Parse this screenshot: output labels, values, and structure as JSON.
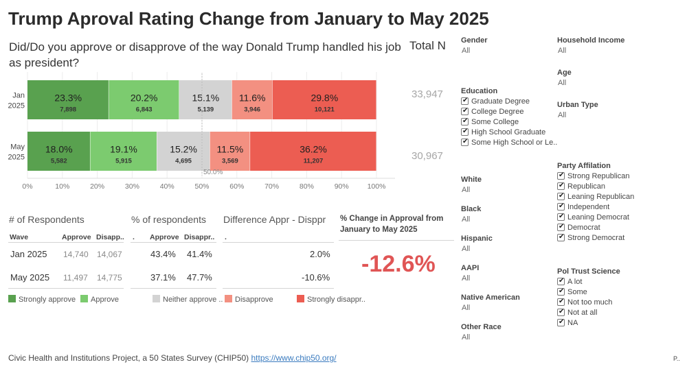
{
  "title": "Trump Aproval Rating Change from January to May 2025",
  "question": "Did/Do you approve or disapprove of the way Donald Trump handled his job as president?",
  "total_n_header": "Total N",
  "chart_data": {
    "type": "bar",
    "orientation": "horizontal",
    "stacked": "100%",
    "categories": [
      "Jan 2025",
      "May 2025"
    ],
    "series": [
      {
        "name": "Strongly approve",
        "color": "#59a14f",
        "values": [
          23.3,
          18.0
        ],
        "counts": [
          "7,898",
          "5,582"
        ]
      },
      {
        "name": "Approve",
        "color": "#7ccb6f",
        "values": [
          20.2,
          19.1
        ],
        "counts": [
          "6,843",
          "5,915"
        ]
      },
      {
        "name": "Neither approve ..",
        "color": "#d3d3d3",
        "values": [
          15.1,
          15.2
        ],
        "counts": [
          "5,139",
          "4,695"
        ]
      },
      {
        "name": "Disapprove",
        "color": "#f39081",
        "values": [
          11.6,
          11.5
        ],
        "counts": [
          "3,946",
          "3,569"
        ]
      },
      {
        "name": "Strongly disappr..",
        "color": "#ec5d52",
        "values": [
          29.8,
          36.2
        ],
        "counts": [
          "10,121",
          "11,207"
        ]
      }
    ],
    "row_labels": [
      [
        "Jan",
        "2025"
      ],
      [
        "May",
        "2025"
      ]
    ],
    "totals": [
      "33,947",
      "30,967"
    ],
    "xlim": [
      0,
      100
    ],
    "xticks": [
      "0%",
      "10%",
      "20%",
      "30%",
      "40%",
      "50%",
      "60%",
      "70%",
      "80%",
      "90%",
      "100%"
    ],
    "reference_line": {
      "value": 50,
      "label": "50.0%"
    },
    "grid": true
  },
  "respondents": {
    "title": "# of Respondents",
    "headers": [
      "Wave",
      "Approve",
      "Disapp.."
    ],
    "rows": [
      {
        "wave": "Jan 2025",
        "approve": "14,740",
        "disapprove": "14,067"
      },
      {
        "wave": "May 2025",
        "approve": "11,497",
        "disapprove": "14,775"
      }
    ]
  },
  "percent": {
    "title": "% of respondents",
    "headers": [
      ".",
      "Approve",
      "Disappr.."
    ],
    "rows": [
      {
        "approve": "43.4%",
        "disapprove": "41.4%"
      },
      {
        "approve": "37.1%",
        "disapprove": "47.7%"
      }
    ]
  },
  "difference": {
    "title": "Difference Appr - Disppr",
    "header": ".",
    "rows": [
      "2.0%",
      "-10.6%"
    ]
  },
  "pct_change": {
    "title": "% Change in Approval from January to May 2025",
    "value": "-12.6%",
    "color": "#e05555"
  },
  "legend": [
    "Strongly approve",
    "Approve",
    "Neither approve ..",
    "Disapprove",
    "Strongly disappr.."
  ],
  "filters": {
    "gender": {
      "label": "Gender",
      "value": "All"
    },
    "education": {
      "label": "Education",
      "options": [
        "Graduate Degree",
        "College Degree",
        "Some College",
        "High School Graduate",
        "Some High School or Le.."
      ]
    },
    "white": {
      "label": "White",
      "value": "All"
    },
    "black": {
      "label": "Black",
      "value": "All"
    },
    "hispanic": {
      "label": "Hispanic",
      "value": "All"
    },
    "aapi": {
      "label": "AAPI",
      "value": "All"
    },
    "native": {
      "label": "Native American",
      "value": "All"
    },
    "other": {
      "label": "Other Race",
      "value": "All"
    },
    "income": {
      "label": "Household Income",
      "value": "All"
    },
    "age": {
      "label": "Age",
      "value": "All"
    },
    "urban": {
      "label": "Urban Type",
      "value": "All"
    },
    "party": {
      "label": "Party Affilation",
      "options": [
        "Strong Republican",
        "Republican",
        "Leaning Republican",
        "Independent",
        "Leaning Democrat",
        "Democrat",
        "Strong Democrat"
      ]
    },
    "trust": {
      "label": "Pol Trust Science",
      "options": [
        "A lot",
        "Some",
        "Not too much",
        "Not at all",
        "NA"
      ]
    }
  },
  "footer": {
    "text": "Civic Health and Institutions Project, a 50 States Survey (CHIP50)",
    "link": "https://www.chip50.org/"
  },
  "corner_text": "P.."
}
